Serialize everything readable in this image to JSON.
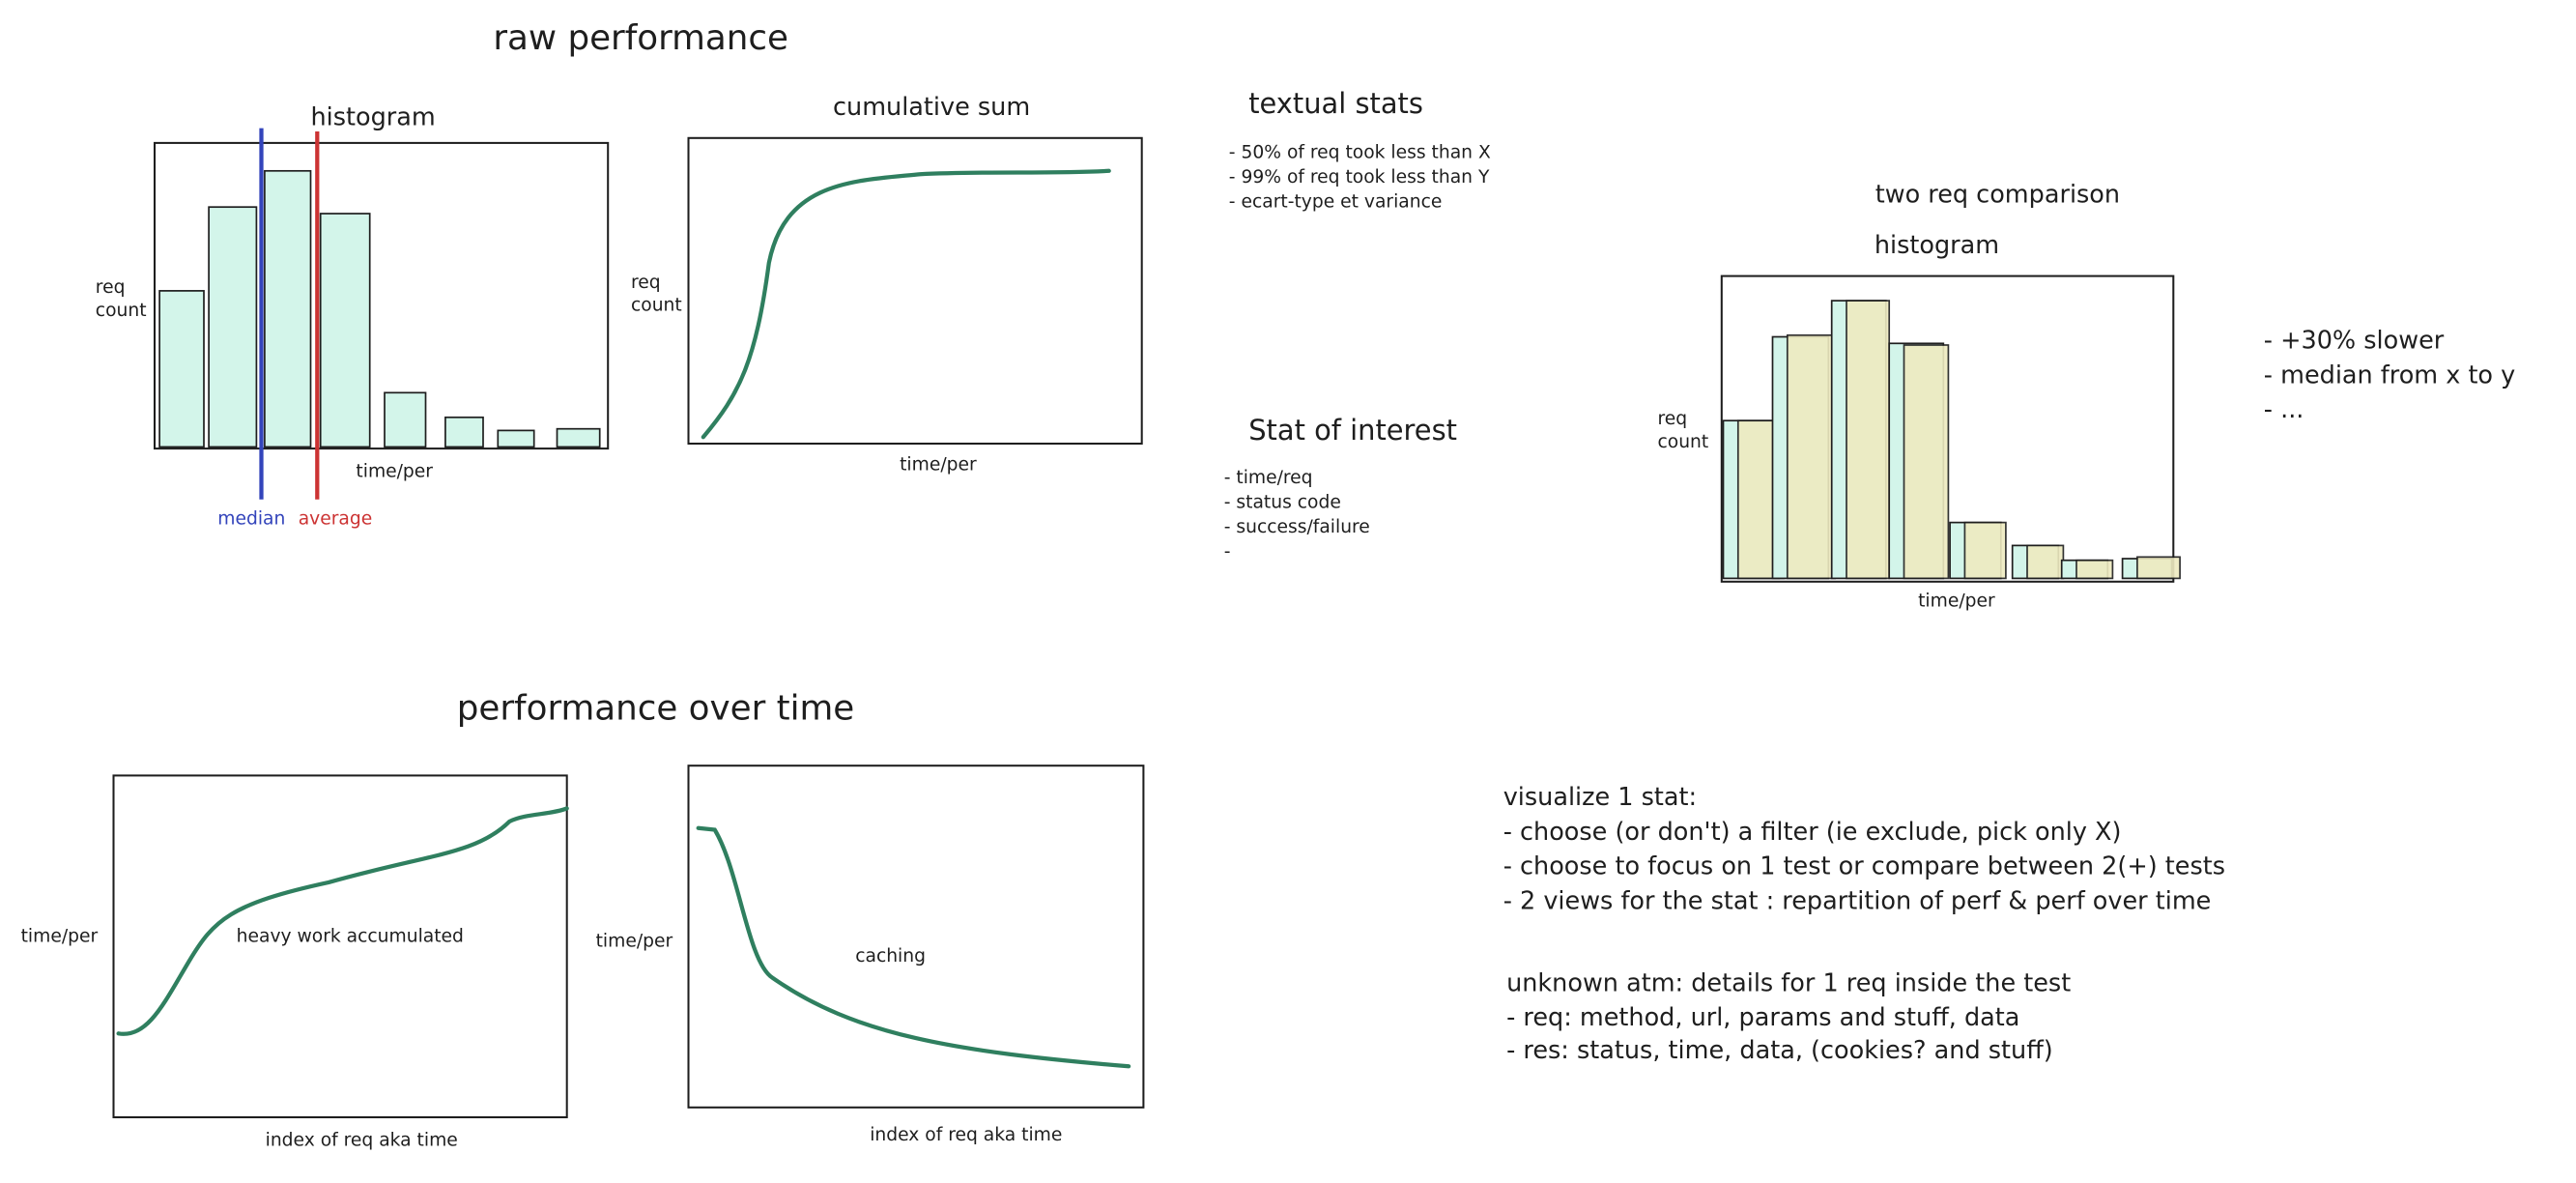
{
  "raw_performance": {
    "title": "raw performance",
    "histogram": {
      "title": "histogram",
      "y_label": [
        "req",
        "count"
      ],
      "x_label": "time/per",
      "markers": [
        "median",
        "average"
      ]
    },
    "cumulative": {
      "title": "cumulative sum",
      "y_label": [
        "req",
        "count"
      ],
      "x_label": "time/per"
    }
  },
  "textual_stats": {
    "title": "textual stats",
    "items": [
      "- 50% of req took less than X",
      "- 99% of req took less than Y",
      "- ecart-type et variance"
    ]
  },
  "stat_of_interest": {
    "title": "Stat of interest",
    "items": [
      "- time/req",
      "- status code",
      "- success/failure",
      "-"
    ]
  },
  "comparison": {
    "title": "two req comparison",
    "subtitle": "histogram",
    "y_label": [
      "req",
      "count"
    ],
    "x_label": "time/per",
    "notes": [
      "- +30% slower",
      "- median from x to y",
      "- ..."
    ]
  },
  "over_time": {
    "title": "performance over time",
    "left": {
      "y_label": "time/per",
      "annotation": "heavy work accumulated",
      "x_label": "index of req aka time"
    },
    "right": {
      "y_label": "time/per",
      "annotation": "caching",
      "x_label": "index of req aka time"
    }
  },
  "notes": {
    "visualize": [
      "visualize 1 stat:",
      "- choose (or don't) a filter (ie exclude, pick only X)",
      "- choose to focus on 1 test or compare between 2(+) tests",
      "- 2 views for the stat : repartition of perf & perf over time"
    ],
    "unknown": [
      "unknown atm: details for 1 req inside the test",
      "- req: method, url, params and stuff, data",
      "- res: status, time, data, (cookies? and stuff)"
    ]
  }
}
